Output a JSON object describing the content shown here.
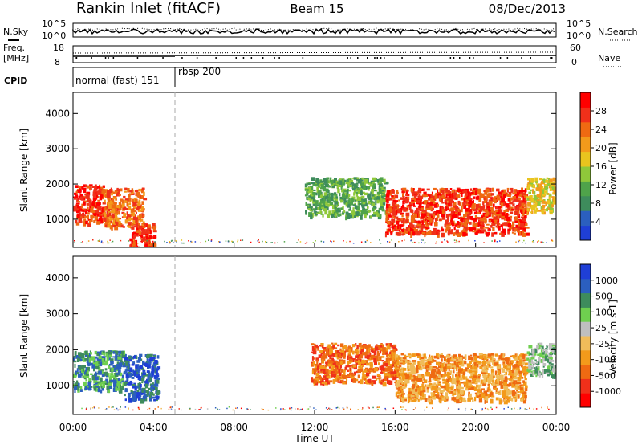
{
  "header": {
    "title": "Rankin Inlet (fitACF)",
    "beam": "Beam 15",
    "date": "08/Dec/2013"
  },
  "noise_panel": {
    "left_label": "N.Sky",
    "right_label": "N.Search",
    "ticks": [
      "10^5",
      "10^0"
    ]
  },
  "freq_panel": {
    "left_label_line1": "Freq.",
    "left_label_line2": "[MHz]",
    "left_ticks": [
      "18",
      "8"
    ],
    "right_label": "Nave",
    "right_ticks": [
      "60",
      "0"
    ]
  },
  "cpid_panel": {
    "label": "CPID",
    "modes": [
      "normal (fast) 151",
      "rbsp 200"
    ]
  },
  "colors": {
    "power": [
      "#1f3fd6",
      "#2b5fbf",
      "#3e8c5c",
      "#4fa34a",
      "#8fc83a",
      "#e9c41e",
      "#f39a1b",
      "#ef6a12",
      "#f0301a",
      "#ff0000"
    ],
    "velocity": [
      "#ff0000",
      "#f0301a",
      "#ef6a12",
      "#f39a1b",
      "#f0bc5a",
      "#bfbfbf",
      "#6fcf4f",
      "#3e8c5c",
      "#2b5fbf",
      "#1f3fd6"
    ]
  },
  "chart_data": [
    {
      "type": "heatmap",
      "title": "",
      "xlabel": "",
      "ylabel": "Slant Range [km]",
      "xlim": [
        "00:00",
        "24:00"
      ],
      "ylim": [
        200,
        4600
      ],
      "y_ticks": [
        1000,
        2000,
        3000,
        4000
      ],
      "colorbar": {
        "label": "Power [dB]",
        "ticks": [
          "4",
          "8",
          "12",
          "16",
          "20",
          "24",
          "28"
        ],
        "range": [
          0,
          30
        ]
      },
      "echo_regions": [
        {
          "start_hour": 0.0,
          "end_hour": 1.5,
          "range_km": [
            900,
            2000
          ],
          "value": "28"
        },
        {
          "start_hour": 1.5,
          "end_hour": 3.5,
          "range_km": [
            800,
            1900
          ],
          "value": "24"
        },
        {
          "start_hour": 2.8,
          "end_hour": 4.0,
          "range_km": [
            200,
            900
          ],
          "value": "28"
        },
        {
          "start_hour": 11.5,
          "end_hour": 15.5,
          "range_km": [
            1100,
            2200
          ],
          "value": "12"
        },
        {
          "start_hour": 15.5,
          "end_hour": 22.5,
          "range_km": [
            600,
            1900
          ],
          "value": "28"
        },
        {
          "start_hour": 22.5,
          "end_hour": 24.0,
          "range_km": [
            1200,
            2200
          ],
          "value": "16"
        }
      ]
    },
    {
      "type": "heatmap",
      "title": "",
      "xlabel": "Time UT",
      "ylabel": "Slant Range [km]",
      "xlim": [
        "00:00",
        "24:00"
      ],
      "ylim": [
        200,
        4600
      ],
      "y_ticks": [
        1000,
        2000,
        3000,
        4000
      ],
      "x_ticks": [
        "00:00",
        "04:00",
        "08:00",
        "12:00",
        "16:00",
        "20:00",
        "00:00"
      ],
      "colorbar": {
        "label": "Velocity [m s-1]",
        "ticks": [
          "-1000",
          "-500",
          "-100",
          "-25",
          "25",
          "100",
          "500",
          "1000"
        ],
        "range": [
          -1250,
          1250
        ]
      },
      "echo_regions": [
        {
          "start_hour": 0.0,
          "end_hour": 2.5,
          "range_km": [
            900,
            2000
          ],
          "value": "500"
        },
        {
          "start_hour": 2.5,
          "end_hour": 4.2,
          "range_km": [
            600,
            1900
          ],
          "value": "1000"
        },
        {
          "start_hour": 11.8,
          "end_hour": 16.0,
          "range_km": [
            1100,
            2200
          ],
          "value": "-500"
        },
        {
          "start_hour": 16.0,
          "end_hour": 22.5,
          "range_km": [
            600,
            1900
          ],
          "value": "-100"
        },
        {
          "start_hour": 22.5,
          "end_hour": 24.0,
          "range_km": [
            1300,
            2200
          ],
          "value": "100"
        }
      ]
    }
  ]
}
